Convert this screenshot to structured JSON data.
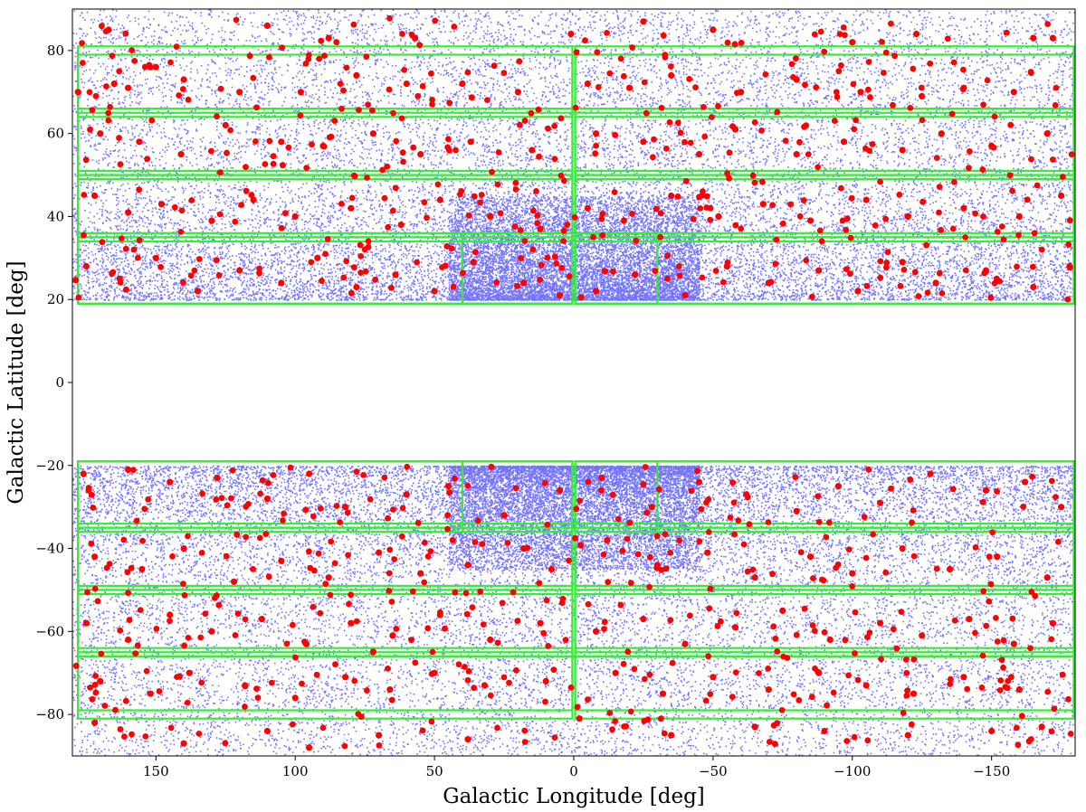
{
  "chart_data": {
    "type": "scatter",
    "xlabel": "Galactic Longitude [deg]",
    "ylabel": "Galactic Latitude [deg]",
    "xlim": [
      180,
      -180
    ],
    "ylim": [
      -90,
      90
    ],
    "x_reversed": true,
    "xticks": [
      150,
      100,
      50,
      0,
      -50,
      -100,
      -150
    ],
    "xtick_labels": [
      "150",
      "100",
      "50",
      "0",
      "−50",
      "−100",
      "−150"
    ],
    "yticks": [
      80,
      60,
      40,
      20,
      0,
      -20,
      -40,
      -60,
      -80
    ],
    "ytick_labels": [
      "80",
      "60",
      "40",
      "20",
      "0",
      "−20",
      "−40",
      "−60",
      "−80"
    ],
    "grid": false,
    "legend": "none",
    "colors": {
      "background_points": "#0000ff",
      "highlight_points": "#ff0000",
      "boxes": "#33ee33"
    },
    "background_points": {
      "description_of_distribution": "dense random scatter over |b| in [20, 90], densest near l=0 and |b| in [20, 40]",
      "excluded_band": [
        -19.5,
        19.5
      ]
    },
    "highlight_points": [
      [
        167,
        85
      ],
      [
        110,
        86
      ],
      [
        88,
        83
      ],
      [
        57,
        83
      ],
      [
        1,
        84
      ],
      [
        -25,
        87
      ],
      [
        -50,
        85
      ],
      [
        -100,
        82
      ],
      [
        -123,
        84
      ],
      [
        -165,
        83
      ],
      [
        -172,
        83
      ],
      [
        178,
        70
      ],
      [
        165,
        72
      ],
      [
        160,
        71
      ],
      [
        150,
        76
      ],
      [
        140,
        73
      ],
      [
        120,
        70
      ],
      [
        98,
        70
      ],
      [
        78,
        74
      ],
      [
        60,
        72
      ],
      [
        40,
        72
      ],
      [
        20,
        70
      ],
      [
        -5,
        72
      ],
      [
        -20,
        71
      ],
      [
        -35,
        74
      ],
      [
        -60,
        70
      ],
      [
        -80,
        73
      ],
      [
        -103,
        70
      ],
      [
        -125,
        69
      ],
      [
        -140,
        71
      ],
      [
        -158,
        70
      ],
      [
        170,
        60
      ],
      [
        156,
        58
      ],
      [
        141,
        55
      ],
      [
        125,
        62
      ],
      [
        105,
        58
      ],
      [
        90,
        57
      ],
      [
        72,
        60
      ],
      [
        55,
        55
      ],
      [
        37,
        58
      ],
      [
        15,
        56
      ],
      [
        -8,
        60
      ],
      [
        -25,
        58
      ],
      [
        -45,
        55
      ],
      [
        -58,
        61
      ],
      [
        -80,
        55
      ],
      [
        -97,
        58
      ],
      [
        -118,
        56
      ],
      [
        -132,
        60
      ],
      [
        -150,
        57
      ],
      [
        -170,
        60
      ],
      [
        172,
        45
      ],
      [
        160,
        41
      ],
      [
        148,
        43
      ],
      [
        130,
        39
      ],
      [
        115,
        44
      ],
      [
        100,
        40
      ],
      [
        80,
        42
      ],
      [
        62,
        38
      ],
      [
        48,
        44
      ],
      [
        30,
        40
      ],
      [
        12,
        37
      ],
      [
        -5,
        42
      ],
      [
        -18,
        39
      ],
      [
        -35,
        45
      ],
      [
        -52,
        40
      ],
      [
        -68,
        43
      ],
      [
        -85,
        39
      ],
      [
        -105,
        44
      ],
      [
        -120,
        40
      ],
      [
        -140,
        42
      ],
      [
        -160,
        40
      ],
      [
        -175,
        45
      ],
      [
        175,
        28
      ],
      [
        163,
        25
      ],
      [
        150,
        30
      ],
      [
        135,
        22
      ],
      [
        120,
        27
      ],
      [
        105,
        24
      ],
      [
        92,
        30
      ],
      [
        78,
        23
      ],
      [
        64,
        26
      ],
      [
        50,
        22
      ],
      [
        36,
        29
      ],
      [
        18,
        24
      ],
      [
        5,
        21
      ],
      [
        -8,
        22
      ],
      [
        -22,
        26
      ],
      [
        -40,
        21
      ],
      [
        -55,
        28
      ],
      [
        -70,
        24
      ],
      [
        -88,
        27
      ],
      [
        -102,
        22
      ],
      [
        -118,
        29
      ],
      [
        -130,
        24
      ],
      [
        -148,
        27
      ],
      [
        -165,
        23
      ],
      [
        -178,
        28
      ],
      [
        176,
        -22
      ],
      [
        160,
        -21
      ],
      [
        145,
        -24
      ],
      [
        128,
        -23
      ],
      [
        110,
        -28
      ],
      [
        95,
        -22
      ],
      [
        82,
        -30
      ],
      [
        60,
        -27
      ],
      [
        45,
        -25
      ],
      [
        25,
        -32
      ],
      [
        5,
        -26
      ],
      [
        -10,
        -23
      ],
      [
        -28,
        -30
      ],
      [
        -45,
        -24
      ],
      [
        -62,
        -27
      ],
      [
        -80,
        -31
      ],
      [
        -95,
        -25
      ],
      [
        -110,
        -29
      ],
      [
        -128,
        -22
      ],
      [
        -148,
        -26
      ],
      [
        -162,
        -24
      ],
      [
        -175,
        -30
      ],
      [
        172,
        -42
      ],
      [
        155,
        -45
      ],
      [
        140,
        -40
      ],
      [
        122,
        -48
      ],
      [
        105,
        -43
      ],
      [
        88,
        -47
      ],
      [
        70,
        -41
      ],
      [
        55,
        -46
      ],
      [
        38,
        -44
      ],
      [
        18,
        -40
      ],
      [
        8,
        -45
      ],
      [
        -12,
        -38
      ],
      [
        -30,
        -44
      ],
      [
        -48,
        -41
      ],
      [
        -65,
        -47
      ],
      [
        -85,
        -42
      ],
      [
        -100,
        -46
      ],
      [
        -118,
        -40
      ],
      [
        -135,
        -45
      ],
      [
        -152,
        -42
      ],
      [
        -170,
        -47
      ],
      [
        175,
        -58
      ],
      [
        160,
        -62
      ],
      [
        145,
        -56
      ],
      [
        130,
        -60
      ],
      [
        112,
        -57
      ],
      [
        96,
        -63
      ],
      [
        80,
        -58
      ],
      [
        65,
        -61
      ],
      [
        48,
        -56
      ],
      [
        30,
        -62
      ],
      [
        12,
        -58
      ],
      [
        -8,
        -60
      ],
      [
        -25,
        -57
      ],
      [
        -40,
        -63
      ],
      [
        -58,
        -59
      ],
      [
        -75,
        -55
      ],
      [
        -92,
        -62
      ],
      [
        -110,
        -58
      ],
      [
        -125,
        -61
      ],
      [
        -142,
        -57
      ],
      [
        -158,
        -63
      ],
      [
        -172,
        -58
      ],
      [
        170,
        -72
      ],
      [
        152,
        -75
      ],
      [
        138,
        -70
      ],
      [
        118,
        -73
      ],
      [
        100,
        -76
      ],
      [
        82,
        -71
      ],
      [
        66,
        -74
      ],
      [
        50,
        -70
      ],
      [
        32,
        -73
      ],
      [
        10,
        -72
      ],
      [
        -15,
        -70
      ],
      [
        -32,
        -75
      ],
      [
        -50,
        -71
      ],
      [
        -70,
        -74
      ],
      [
        -88,
        -70
      ],
      [
        -105,
        -73
      ],
      [
        -122,
        -75
      ],
      [
        -140,
        -71
      ],
      [
        -160,
        -74
      ],
      [
        172,
        -82
      ],
      [
        140,
        -87
      ],
      [
        110,
        -84
      ],
      [
        95,
        -88
      ],
      [
        70,
        -85
      ],
      [
        38,
        -86
      ],
      [
        -2,
        -81
      ],
      [
        -35,
        -85
      ],
      [
        -65,
        -83
      ],
      [
        -90,
        -84
      ],
      [
        -120,
        -85
      ],
      [
        -150,
        -84
      ],
      [
        -168,
        -83
      ]
    ],
    "highlight_summary": "approx. 1000 red points scattered over |b| > 20"
  }
}
